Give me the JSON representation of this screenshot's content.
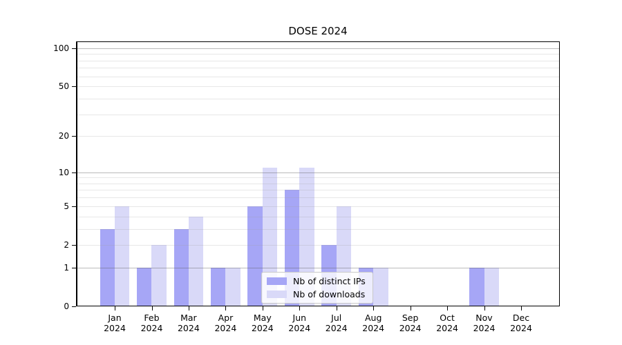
{
  "title": "DOSE 2024",
  "legend": {
    "items": [
      {
        "label": "Nb of distinct IPs",
        "color": "#a6a6f6"
      },
      {
        "label": "Nb of downloads",
        "color": "#d9d9f8"
      }
    ]
  },
  "colors": {
    "distinct_ips_bar": "#a6a6f6",
    "downloads_bar": "#d9d9f8",
    "axis": "#000000"
  },
  "chart_data": {
    "type": "bar",
    "title": "DOSE 2024",
    "categories": [
      "Jan 2024",
      "Feb 2024",
      "Mar 2024",
      "Apr 2024",
      "May 2024",
      "Jun 2024",
      "Jul 2024",
      "Aug 2024",
      "Sep 2024",
      "Oct 2024",
      "Nov 2024",
      "Dec 2024"
    ],
    "series": [
      {
        "name": "Nb of distinct IPs",
        "color": "#a6a6f6",
        "values": [
          3,
          1,
          3,
          1,
          5,
          7,
          2,
          1,
          0,
          0,
          1,
          0
        ]
      },
      {
        "name": "Nb of downloads",
        "color": "#d9d9f8",
        "values": [
          5,
          2,
          4,
          1,
          11,
          11,
          5,
          1,
          0,
          0,
          1,
          0
        ]
      }
    ],
    "xlabel": "",
    "ylabel": "",
    "yscale": "log1p",
    "ylim": [
      0,
      113
    ],
    "yticks": [
      0,
      1,
      2,
      5,
      10,
      20,
      50,
      100
    ],
    "minor_yticks": [
      2,
      3,
      4,
      5,
      6,
      7,
      8,
      9,
      20,
      30,
      40,
      50,
      60,
      70,
      80,
      90
    ],
    "major_gridlines": [
      1,
      10,
      100
    ],
    "grid": "horizontal",
    "legend_position": "lower-right-inside"
  }
}
